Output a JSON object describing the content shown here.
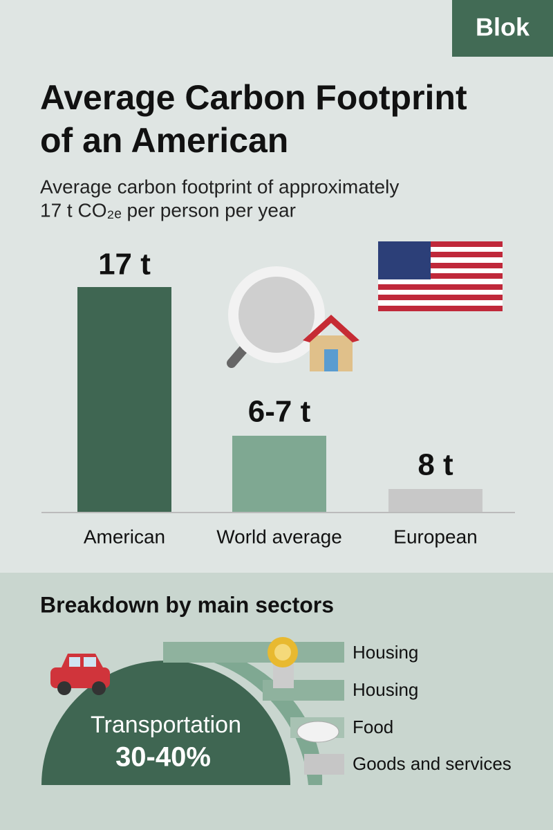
{
  "badge": "Blok",
  "title": [
    "Average Carbon Footprint",
    "of an American"
  ],
  "subtitle": [
    "Average carbon footprint of approximately",
    "17 t CO₂ₑ per person per year"
  ],
  "comparison": {
    "bars": [
      {
        "label": "American",
        "value_label": "17 t"
      },
      {
        "label": "World average",
        "value_label": "6-7 t"
      },
      {
        "label": "European",
        "value_label": "8 t"
      }
    ]
  },
  "breakdown": {
    "title": "Breakdown by main sectors",
    "highlight": {
      "label": "Transportation",
      "share": "30-40%"
    },
    "legend": [
      "Housing",
      "Housing",
      "Food",
      "Goods and services"
    ]
  }
}
